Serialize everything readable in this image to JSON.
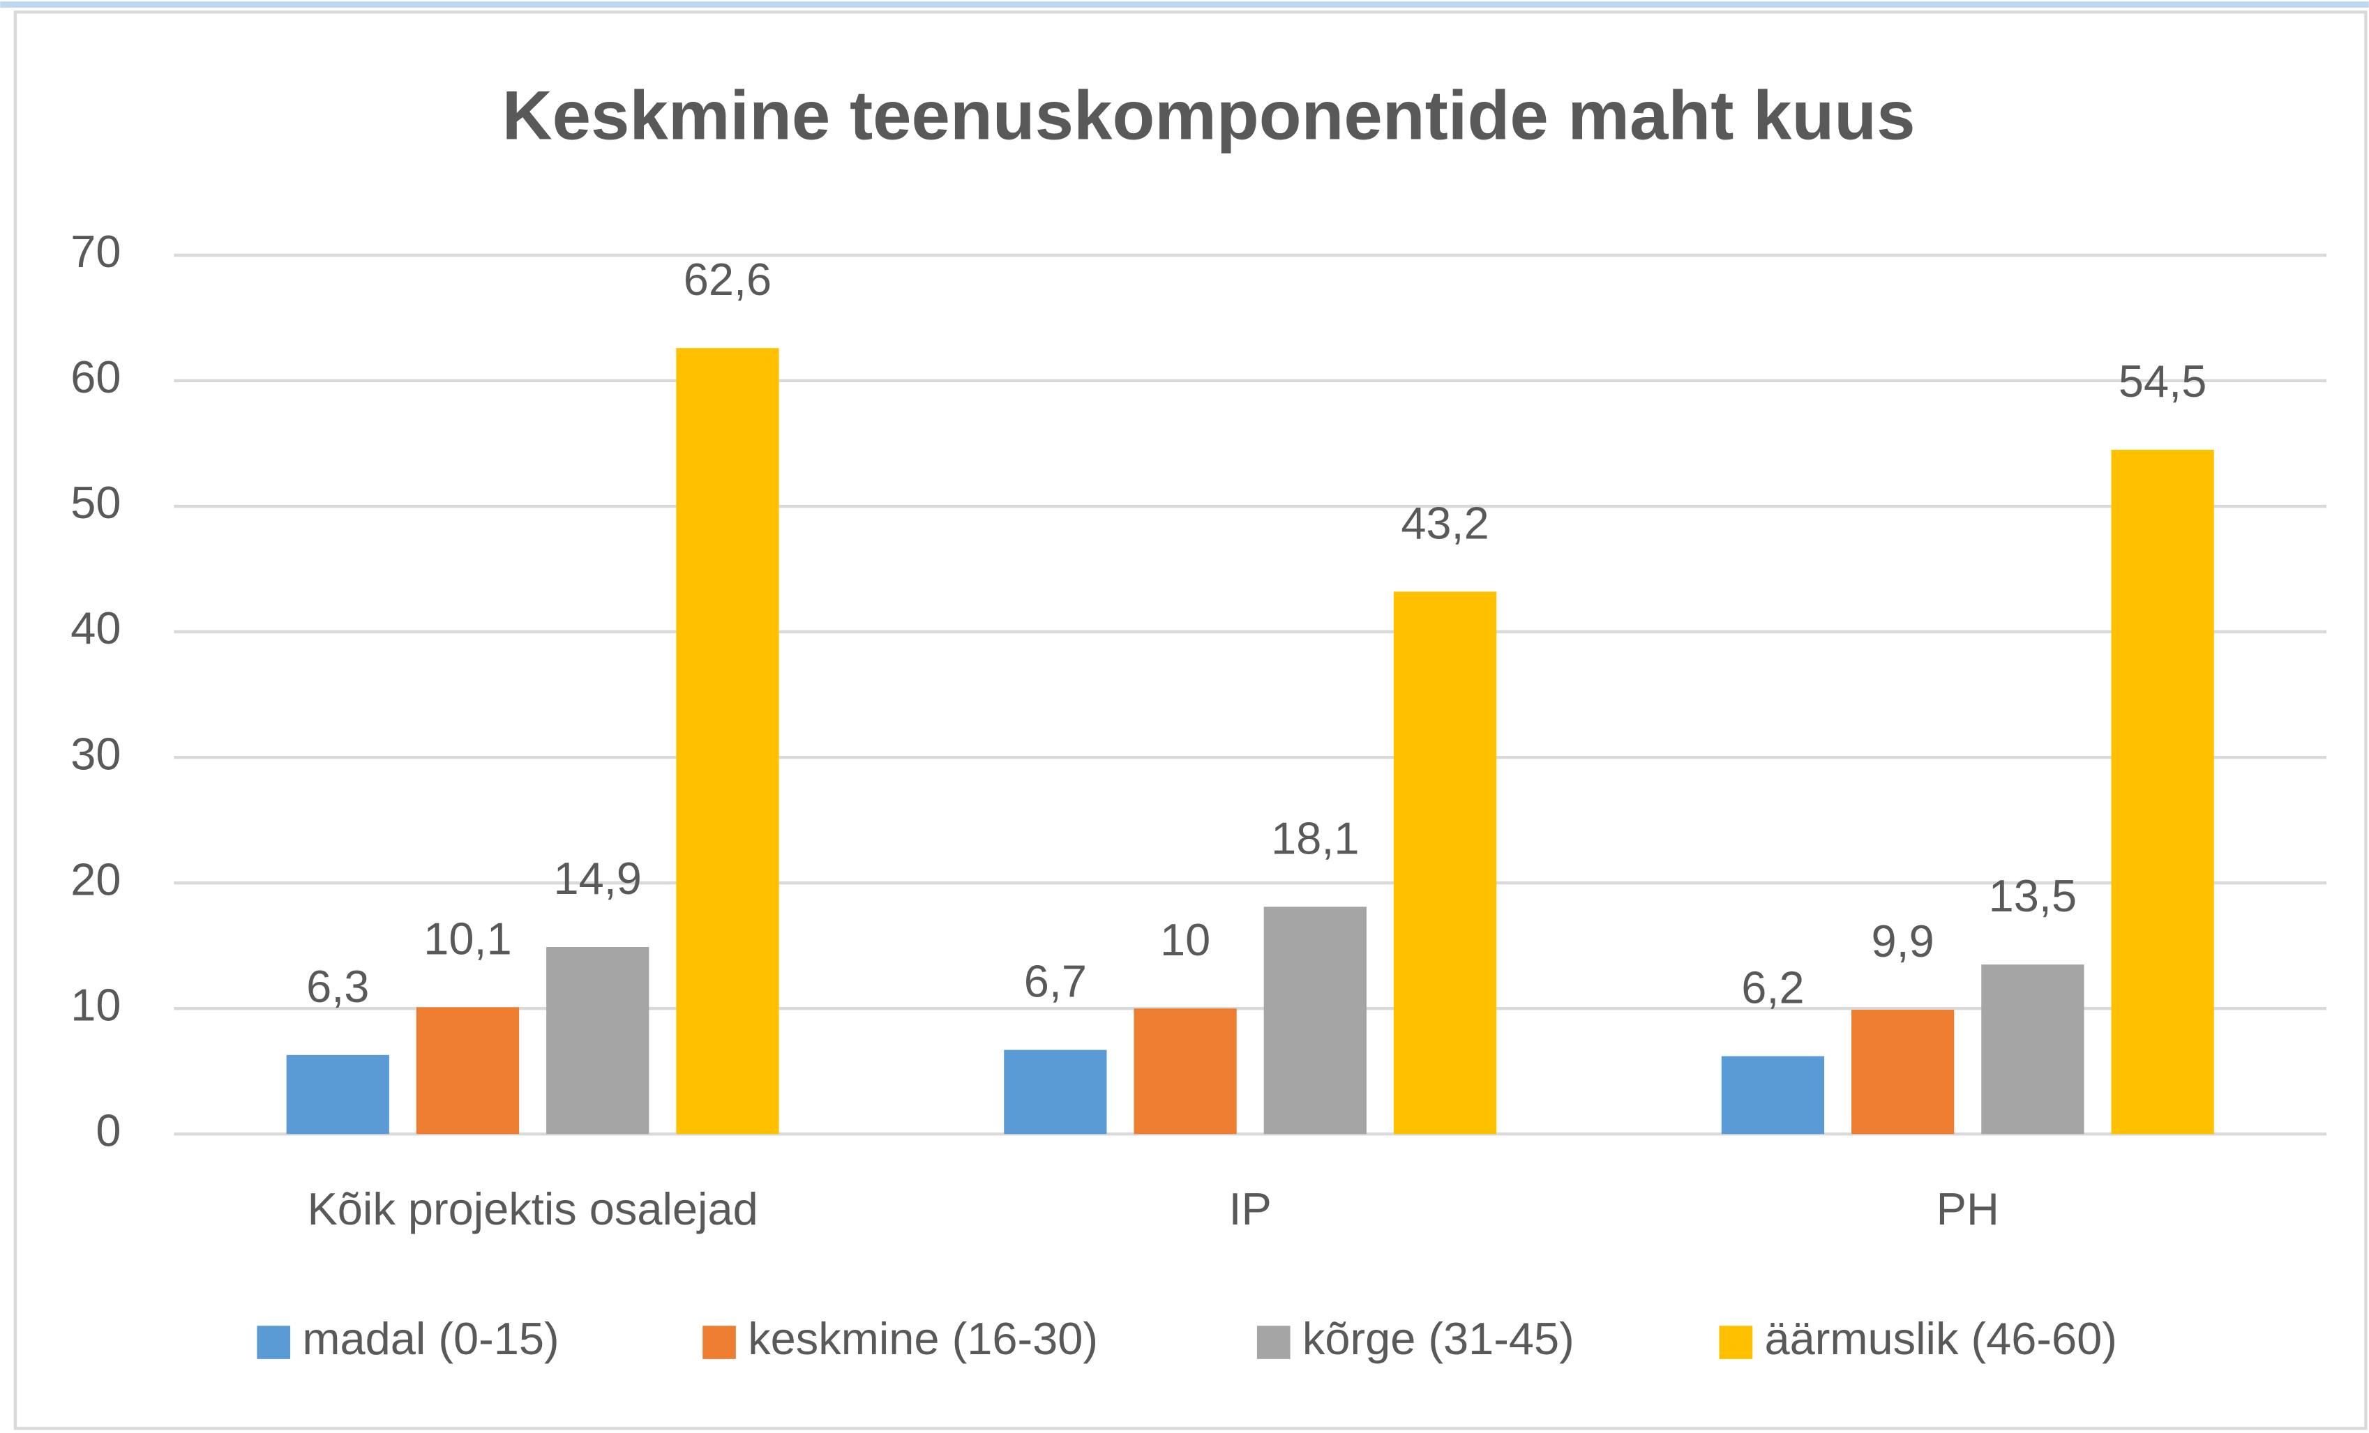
{
  "chart_data": {
    "type": "bar",
    "title": "Keskmine teenuskomponentide maht kuus",
    "categories": [
      "Kõik projektis osalejad",
      "IP",
      "PH"
    ],
    "series": [
      {
        "name": "madal (0-15)",
        "color": "#5b9bd5",
        "values": [
          6.3,
          6.7,
          6.2
        ],
        "value_labels": [
          "6,3",
          "6,7",
          "6,2"
        ]
      },
      {
        "name": "keskmine (16-30)",
        "color": "#ed7d31",
        "values": [
          10.1,
          10,
          9.9
        ],
        "value_labels": [
          "10,1",
          "10",
          "9,9"
        ]
      },
      {
        "name": "kõrge (31-45)",
        "color": "#a5a5a5",
        "values": [
          14.9,
          18.1,
          13.5
        ],
        "value_labels": [
          "14,9",
          "18,1",
          "13,5"
        ]
      },
      {
        "name": "äärmuslik (46-60)",
        "color": "#ffc000",
        "values": [
          62.6,
          43.2,
          54.5
        ],
        "value_labels": [
          "62,6",
          "43,2",
          "54,5"
        ]
      }
    ],
    "ylim": [
      0,
      70
    ],
    "yticks": [
      0,
      10,
      20,
      30,
      40,
      50,
      60,
      70
    ],
    "grid": true,
    "legend": "bottom"
  }
}
